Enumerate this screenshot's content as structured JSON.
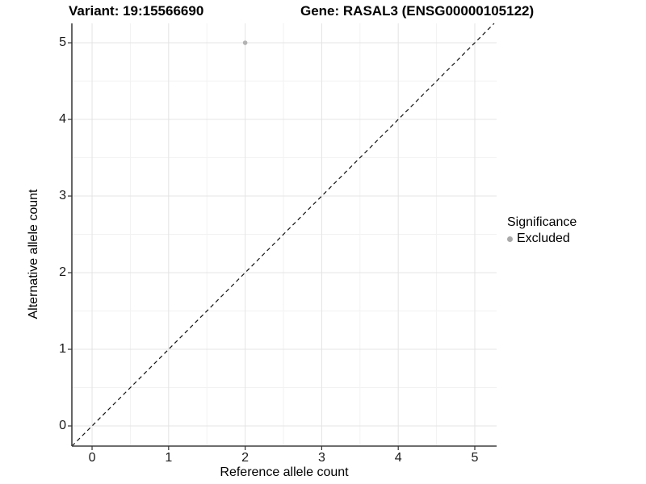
{
  "header": {
    "variant_title": "Variant: 19:15566690",
    "gene_title": "Gene: RASAL3 (ENSG00000105122)"
  },
  "chart_data": {
    "type": "scatter",
    "x": {
      "label": "Reference allele count",
      "ticks": [
        0,
        1,
        2,
        3,
        4,
        5
      ],
      "minor_step": 0.5,
      "range": [
        -0.264,
        5.285
      ]
    },
    "y": {
      "label": "Alternative allele count",
      "ticks": [
        0,
        1,
        2,
        3,
        4,
        5
      ],
      "minor_step": 0.5,
      "range": [
        -0.263,
        5.253
      ]
    },
    "series": [
      {
        "name": "Excluded",
        "color": "#b3b3b3",
        "point_radius": 2.8,
        "points": [
          {
            "x": 2,
            "y": 5
          }
        ]
      }
    ],
    "reference_line": {
      "type": "identity",
      "slope": 1,
      "intercept": 0,
      "style": "dashed",
      "color": "#111111"
    },
    "legend": {
      "title": "Significance",
      "position": "right",
      "entries": [
        {
          "label": "Excluded",
          "color": "#a9a9a9"
        }
      ]
    },
    "style": {
      "grid_major": "#e4e4e4",
      "grid_minor": "#f2f2f2",
      "axis_line": "#3f3f3f",
      "tick_color": "#333333",
      "background": "#ffffff"
    }
  }
}
